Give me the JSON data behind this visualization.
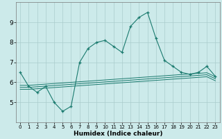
{
  "xlabel": "Humidex (Indice chaleur)",
  "background_color": "#cceaea",
  "grid_color": "#aacccc",
  "line_color": "#1a7a6e",
  "x_values": [
    0,
    1,
    2,
    3,
    4,
    5,
    6,
    7,
    8,
    9,
    10,
    11,
    12,
    13,
    14,
    15,
    16,
    17,
    18,
    19,
    20,
    21,
    22,
    23
  ],
  "main_line": [
    6.5,
    5.8,
    5.5,
    5.8,
    5.0,
    4.55,
    4.8,
    7.0,
    7.7,
    8.0,
    8.1,
    7.8,
    7.5,
    8.8,
    9.25,
    9.5,
    8.2,
    7.1,
    6.8,
    6.5,
    6.4,
    6.5,
    6.8,
    6.3
  ],
  "trend_line1": [
    5.85,
    5.85,
    5.88,
    5.91,
    5.94,
    5.97,
    6.0,
    6.03,
    6.06,
    6.09,
    6.12,
    6.15,
    6.18,
    6.21,
    6.24,
    6.27,
    6.3,
    6.33,
    6.36,
    6.39,
    6.42,
    6.45,
    6.48,
    6.28
  ],
  "trend_line2": [
    5.75,
    5.75,
    5.78,
    5.81,
    5.84,
    5.87,
    5.9,
    5.93,
    5.96,
    5.99,
    6.02,
    6.05,
    6.08,
    6.11,
    6.14,
    6.17,
    6.2,
    6.23,
    6.26,
    6.29,
    6.32,
    6.35,
    6.38,
    6.18
  ],
  "trend_line3": [
    5.65,
    5.65,
    5.68,
    5.71,
    5.74,
    5.77,
    5.8,
    5.83,
    5.86,
    5.89,
    5.92,
    5.95,
    5.98,
    6.01,
    6.04,
    6.07,
    6.1,
    6.13,
    6.16,
    6.19,
    6.22,
    6.25,
    6.28,
    6.08
  ],
  "ylim": [
    4.0,
    10.0
  ],
  "xlim": [
    -0.5,
    23.5
  ],
  "yticks": [
    5,
    6,
    7,
    8,
    9
  ]
}
